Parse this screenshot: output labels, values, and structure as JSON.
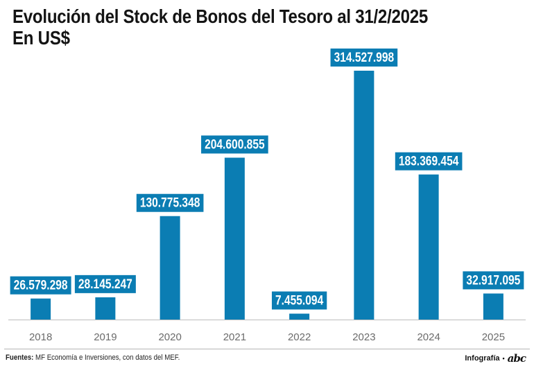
{
  "title": {
    "line1": "Evolución del Stock de Bonos del Tesoro al 31/2/2025",
    "line2": "En US$"
  },
  "footer": {
    "source_label": "Fuentes:",
    "source_text": "MF Economía e Inversiones, con datos del MEF.",
    "credit": "Infografía",
    "separator": "•",
    "logo": "abc"
  },
  "colors": {
    "bar": "#0b7db3",
    "label_bg": "#0b7db3",
    "label_text": "#ffffff",
    "axis_text": "#6b6b6b",
    "baseline": "#bdbdbd"
  },
  "chart_data": {
    "type": "bar",
    "title": "Evolución del Stock de Bonos del Tesoro al 31/2/2025",
    "subtitle": "En US$",
    "categories": [
      "2018",
      "2019",
      "2020",
      "2021",
      "2022",
      "2023",
      "2024",
      "2025"
    ],
    "values": [
      26579298,
      28145247,
      130775348,
      204600855,
      7455094,
      314527998,
      183369454,
      32917095
    ],
    "value_labels": [
      "26.579.298",
      "28.145.247",
      "130.775.348",
      "204.600.855",
      "7.455.094",
      "314.527.998",
      "183.369.454",
      "32.917.095"
    ],
    "xlabel": "",
    "ylabel": "",
    "ylim": [
      0,
      314527998
    ],
    "grid": false,
    "legend": "none"
  }
}
